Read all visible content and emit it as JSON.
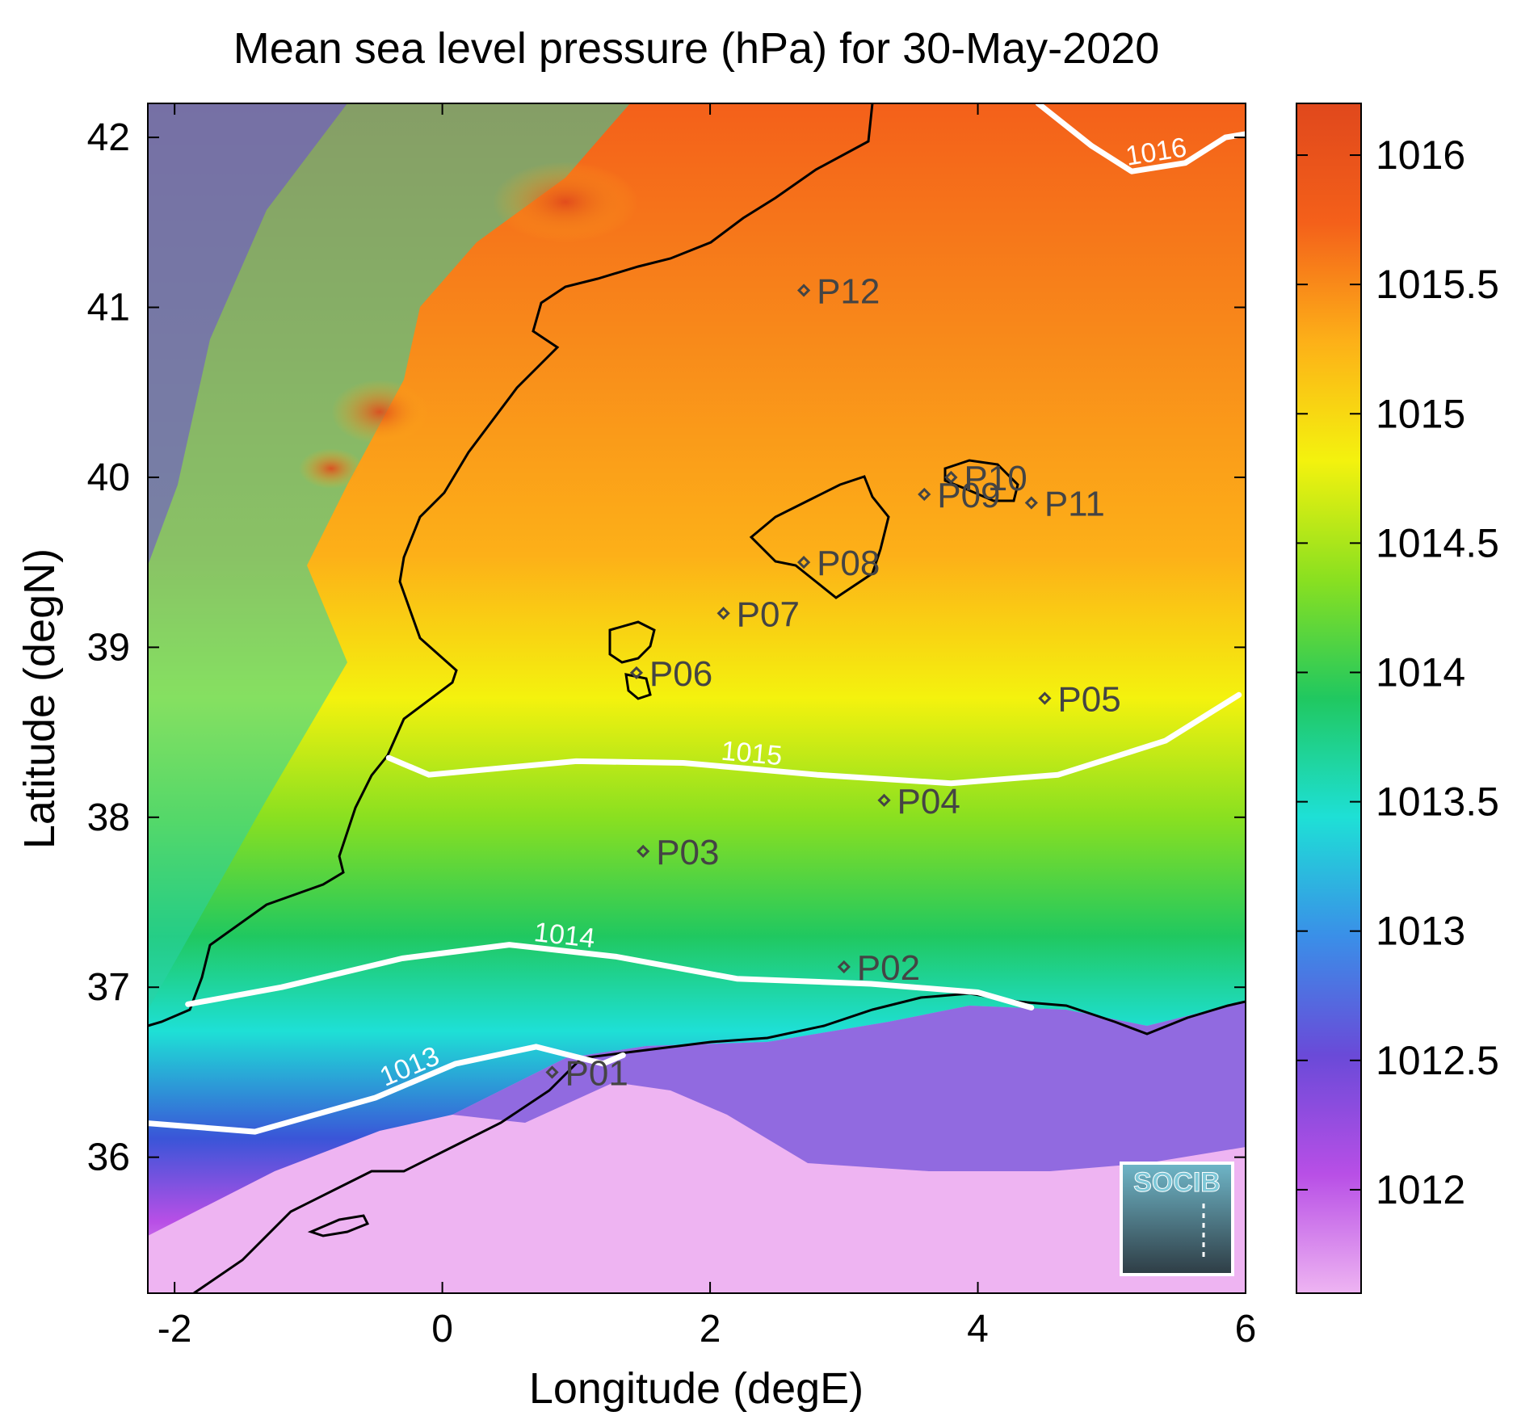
{
  "title": "Mean sea level pressure (hPa) for 30-May-2020",
  "map": {
    "xlabel": "Longitude (degE)",
    "ylabel": "Latitude (degN)",
    "xlim": [
      -2.2,
      6.0
    ],
    "ylim": [
      35.2,
      42.2
    ],
    "x_ticks": [
      -2,
      0,
      2,
      4,
      6
    ],
    "y_ticks": [
      36,
      37,
      38,
      39,
      40,
      41,
      42
    ],
    "x_tick_labels": [
      "-2",
      "0",
      "2",
      "4",
      "6"
    ],
    "y_tick_labels": [
      "36",
      "37",
      "38",
      "39",
      "40",
      "41",
      "42"
    ]
  },
  "colorbar": {
    "range": [
      1011.6,
      1016.2
    ],
    "ticks": [
      1012,
      1012.5,
      1013,
      1013.5,
      1014,
      1014.5,
      1015,
      1015.5,
      1016
    ],
    "tick_labels": [
      "1012",
      "1012.5",
      "1013",
      "1013.5",
      "1014",
      "1014.5",
      "1015",
      "1015.5",
      "1016"
    ],
    "colors": [
      "#eeb4f2",
      "#b84fe6",
      "#6a4ad8",
      "#3a8fe8",
      "#1ee0d6",
      "#20c860",
      "#8ae020",
      "#f4f20e",
      "#fdb018",
      "#f4601a",
      "#e0481c"
    ]
  },
  "contours": [
    {
      "label": "1013",
      "points": [
        [
          -2.2,
          36.2
        ],
        [
          -1.4,
          36.15
        ],
        [
          -0.5,
          36.35
        ],
        [
          0.1,
          36.55
        ],
        [
          0.7,
          36.65
        ],
        [
          1.2,
          36.55
        ],
        [
          1.35,
          36.6
        ]
      ]
    },
    {
      "label": "1014",
      "points": [
        [
          -1.9,
          36.9
        ],
        [
          -1.2,
          37.0
        ],
        [
          -0.3,
          37.17
        ],
        [
          0.5,
          37.25
        ],
        [
          1.3,
          37.18
        ],
        [
          2.2,
          37.05
        ],
        [
          3.2,
          37.02
        ],
        [
          4.0,
          36.97
        ],
        [
          4.4,
          36.88
        ]
      ]
    },
    {
      "label": "1015",
      "points": [
        [
          -0.4,
          38.35
        ],
        [
          -0.1,
          38.25
        ],
        [
          1.0,
          38.33
        ],
        [
          1.8,
          38.32
        ],
        [
          2.8,
          38.25
        ],
        [
          3.8,
          38.2
        ],
        [
          4.6,
          38.25
        ],
        [
          5.4,
          38.45
        ],
        [
          5.95,
          38.72
        ]
      ]
    },
    {
      "label": "1016",
      "points": [
        [
          4.45,
          42.2
        ],
        [
          4.85,
          41.95
        ],
        [
          5.15,
          41.8
        ],
        [
          5.55,
          41.85
        ],
        [
          5.85,
          42.0
        ],
        [
          6.0,
          42.02
        ]
      ]
    }
  ],
  "stations": [
    {
      "name": "P01",
      "lon": 0.82,
      "lat": 36.5
    },
    {
      "name": "P02",
      "lon": 3.0,
      "lat": 37.12
    },
    {
      "name": "P03",
      "lon": 1.5,
      "lat": 37.8
    },
    {
      "name": "P04",
      "lon": 3.3,
      "lat": 38.1
    },
    {
      "name": "P05",
      "lon": 4.5,
      "lat": 38.7
    },
    {
      "name": "P06",
      "lon": 1.45,
      "lat": 38.85
    },
    {
      "name": "P07",
      "lon": 2.1,
      "lat": 39.2
    },
    {
      "name": "P08",
      "lon": 2.7,
      "lat": 39.5
    },
    {
      "name": "P09",
      "lon": 3.6,
      "lat": 39.9
    },
    {
      "name": "P10",
      "lon": 3.8,
      "lat": 40.0
    },
    {
      "name": "P11",
      "lon": 4.4,
      "lat": 39.85
    },
    {
      "name": "P12",
      "lon": 2.7,
      "lat": 41.1
    }
  ],
  "logo": {
    "text": "SOCIB"
  }
}
